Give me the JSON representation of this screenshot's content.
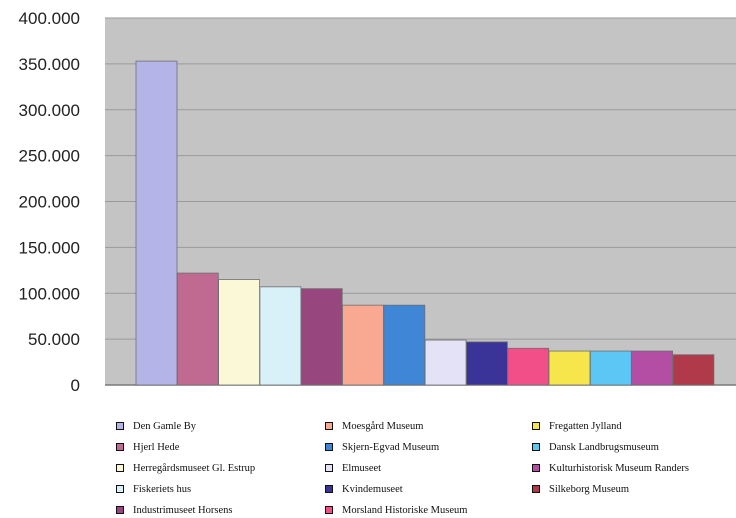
{
  "chart_data": {
    "type": "bar",
    "title": "",
    "xlabel": "",
    "ylabel": "",
    "ylim": [
      0,
      400000
    ],
    "yticks": [
      0,
      50000,
      100000,
      150000,
      200000,
      250000,
      300000,
      350000,
      400000
    ],
    "ytick_labels": [
      "0",
      "50.000",
      "100.000",
      "150.000",
      "200.000",
      "250.000",
      "300.000",
      "350.000",
      "400.000"
    ],
    "grid": true,
    "legend_position": "bottom",
    "series": [
      {
        "name": "Den Gamle By",
        "value": 353000,
        "color": "#b4b4e8"
      },
      {
        "name": "Hjerl Hede",
        "value": 122000,
        "color": "#c06a92"
      },
      {
        "name": "Herregårdsmuseet Gl. Estrup",
        "value": 115000,
        "color": "#fbf8d8"
      },
      {
        "name": "Fiskeriets hus",
        "value": 107000,
        "color": "#d8f0f8"
      },
      {
        "name": "Industrimuseet Horsens",
        "value": 105000,
        "color": "#98467e"
      },
      {
        "name": "Moesgård Museum",
        "value": 87000,
        "color": "#f9a992"
      },
      {
        "name": "Skjern-Egvad Museum",
        "value": 87000,
        "color": "#3f86d6"
      },
      {
        "name": "Elmuseet",
        "value": 49000,
        "color": "#e4e2f6"
      },
      {
        "name": "Kvindemuseet",
        "value": 47000,
        "color": "#3a3499"
      },
      {
        "name": "Morsland Historiske Museum",
        "value": 40000,
        "color": "#f24f88"
      },
      {
        "name": "Fregatten Jylland",
        "value": 37000,
        "color": "#f7e64b"
      },
      {
        "name": "Dansk Landbrugsmuseum",
        "value": 37000,
        "color": "#5cc7f4"
      },
      {
        "name": "Kulturhistorisk Museum Randers",
        "value": 37000,
        "color": "#b34ea4"
      },
      {
        "name": "Silkeborg Museum",
        "value": 33000,
        "color": "#b03a4a"
      }
    ],
    "legend_columns": [
      [
        "Den Gamle By",
        "Hjerl Hede",
        "Herregårdsmuseet Gl. Estrup",
        "Fiskeriets hus",
        "Industrimuseet Horsens"
      ],
      [
        "Moesgård Museum",
        "Skjern-Egvad Museum",
        "Elmuseet",
        "Kvindemuseet",
        "Morsland Historiske Museum"
      ],
      [
        "Fregatten Jylland",
        "Dansk Landbrugsmuseum",
        "Kulturhistorisk Museum Randers",
        "Silkeborg Museum"
      ]
    ],
    "plot_background": "#c4c4c4"
  }
}
